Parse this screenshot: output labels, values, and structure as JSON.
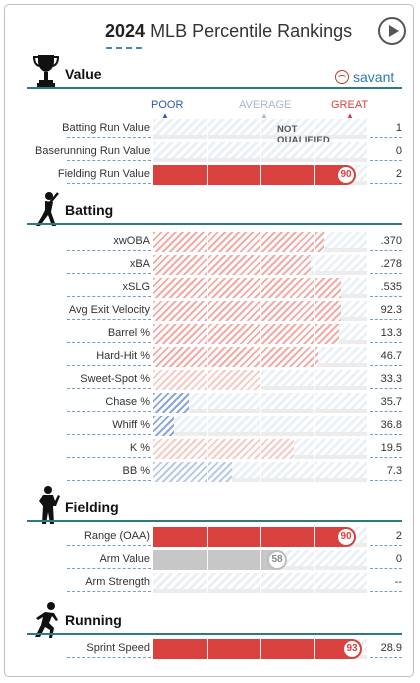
{
  "header": {
    "year": "2024",
    "title": "MLB Percentile Rankings"
  },
  "savant": {
    "label": "savant"
  },
  "legend": {
    "poor": "POOR",
    "average": "AVERAGE",
    "great": "GREAT",
    "colors": {
      "poor": "#2a5aa8",
      "average": "#aab8c6",
      "great": "#d9413e"
    }
  },
  "sections": {
    "value": {
      "title": "Value"
    },
    "batting": {
      "title": "Batting"
    },
    "fielding": {
      "title": "Fielding"
    },
    "running": {
      "title": "Running"
    }
  },
  "value_rows": [
    {
      "label": "Batting Run Value",
      "value": "1",
      "percentile": null,
      "note": "NOT QUALIFIED"
    },
    {
      "label": "Baserunning Run Value",
      "value": "0",
      "percentile": null
    },
    {
      "label": "Fielding Run Value",
      "value": "2",
      "percentile": 90,
      "percentile_label": "90"
    }
  ],
  "batting_rows": [
    {
      "label": "xwOBA",
      "value": ".370",
      "percentile": 80
    },
    {
      "label": "xBA",
      "value": ".278",
      "percentile": 74
    },
    {
      "label": "xSLG",
      "value": ".535",
      "percentile": 88
    },
    {
      "label": "Avg Exit Velocity",
      "value": "92.3",
      "percentile": 88
    },
    {
      "label": "Barrel %",
      "value": "13.3",
      "percentile": 87
    },
    {
      "label": "Hard-Hit %",
      "value": "46.7",
      "percentile": 77
    },
    {
      "label": "Sweet-Spot %",
      "value": "33.3",
      "percentile": 50
    },
    {
      "label": "Chase %",
      "value": "35.7",
      "percentile": 17
    },
    {
      "label": "Whiff %",
      "value": "36.8",
      "percentile": 10
    },
    {
      "label": "K %",
      "value": "19.5",
      "percentile": 66
    },
    {
      "label": "BB %",
      "value": "7.3",
      "percentile": 37
    }
  ],
  "fielding_rows": [
    {
      "label": "Range (OAA)",
      "value": "2",
      "percentile": 90,
      "percentile_label": "90"
    },
    {
      "label": "Arm Value",
      "value": "0",
      "percentile": 58,
      "percentile_label": "58"
    },
    {
      "label": "Arm Strength",
      "value": "--",
      "percentile": null
    }
  ],
  "running_rows": [
    {
      "label": "Sprint Speed",
      "value": "28.9",
      "percentile": 93,
      "percentile_label": "93"
    }
  ]
}
